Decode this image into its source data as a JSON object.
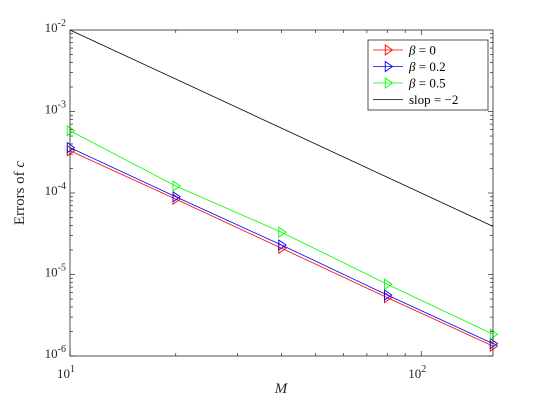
{
  "chart_data": {
    "type": "line",
    "xlabel": "M",
    "ylabel_prefix": "Errors of ",
    "ylabel_var": "c",
    "xscale": "log",
    "yscale": "log",
    "xlim": [
      10,
      160
    ],
    "ylim": [
      1e-06,
      0.01
    ],
    "grid": false,
    "legend_position": "top-right",
    "x_ticks": [
      {
        "value": 10,
        "base": "10",
        "exp": "1"
      },
      {
        "value": 100,
        "base": "10",
        "exp": "2"
      }
    ],
    "y_ticks": [
      {
        "value": 1e-06,
        "base": "10",
        "exp": "-6"
      },
      {
        "value": 1e-05,
        "base": "10",
        "exp": "-5"
      },
      {
        "value": 0.0001,
        "base": "10",
        "exp": "-4"
      },
      {
        "value": 0.001,
        "base": "10",
        "exp": "-3"
      },
      {
        "value": 0.01,
        "base": "10",
        "exp": "-2"
      }
    ],
    "series": [
      {
        "name": "β = 0",
        "legend_sym": "β",
        "legend_rest": " = 0",
        "color": "#ff0000",
        "marker": "triangle-right",
        "x": [
          10,
          20,
          40,
          80,
          160
        ],
        "y": [
          0.00033,
          8.4e-05,
          2.1e-05,
          5.2e-06,
          1.32e-06
        ]
      },
      {
        "name": "β = 0.2",
        "legend_sym": "β",
        "legend_rest": " = 0.2",
        "color": "#0000ff",
        "marker": "triangle-right",
        "x": [
          10,
          20,
          40,
          80,
          160
        ],
        "y": [
          0.00036,
          9e-05,
          2.3e-05,
          5.6e-06,
          1.42e-06
        ]
      },
      {
        "name": "β = 0.5",
        "legend_sym": "β",
        "legend_rest": " = 0.5",
        "color": "#00ff00",
        "marker": "triangle-right",
        "x": [
          10,
          20,
          40,
          80,
          160
        ],
        "y": [
          0.00058,
          0.000122,
          3.3e-05,
          7.6e-06,
          1.85e-06
        ]
      },
      {
        "name": "slop = −2",
        "legend_sym": "",
        "legend_rest": "slop = −2",
        "color": "#000000",
        "marker": "none",
        "x": [
          10,
          160
        ],
        "y": [
          0.01,
          3.9e-05
        ]
      }
    ]
  }
}
